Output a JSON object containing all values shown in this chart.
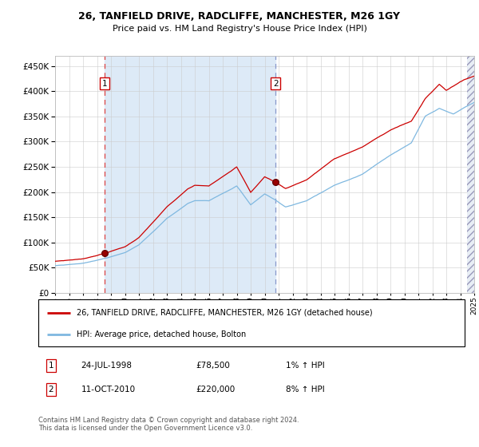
{
  "title1": "26, TANFIELD DRIVE, RADCLIFFE, MANCHESTER, M26 1GY",
  "title2": "Price paid vs. HM Land Registry's House Price Index (HPI)",
  "legend_line1": "26, TANFIELD DRIVE, RADCLIFFE, MANCHESTER, M26 1GY (detached house)",
  "legend_line2": "HPI: Average price, detached house, Bolton",
  "annotation1_date": "24-JUL-1998",
  "annotation1_price": "£78,500",
  "annotation1_hpi": "1% ↑ HPI",
  "annotation2_date": "11-OCT-2010",
  "annotation2_price": "£220,000",
  "annotation2_hpi": "8% ↑ HPI",
  "footer": "Contains HM Land Registry data © Crown copyright and database right 2024.\nThis data is licensed under the Open Government Licence v3.0.",
  "sale1_year": 1998.56,
  "sale1_price": 78500,
  "sale2_year": 2010.78,
  "sale2_price": 220000,
  "hpi_color": "#7fb8e0",
  "red_color": "#cc0000",
  "bg_shade_color": "#ddeaf7",
  "grid_color": "#cccccc",
  "ylim_max": 470000,
  "ylim_min": 0,
  "xlim_min": 1995.0,
  "xlim_max": 2025.0
}
